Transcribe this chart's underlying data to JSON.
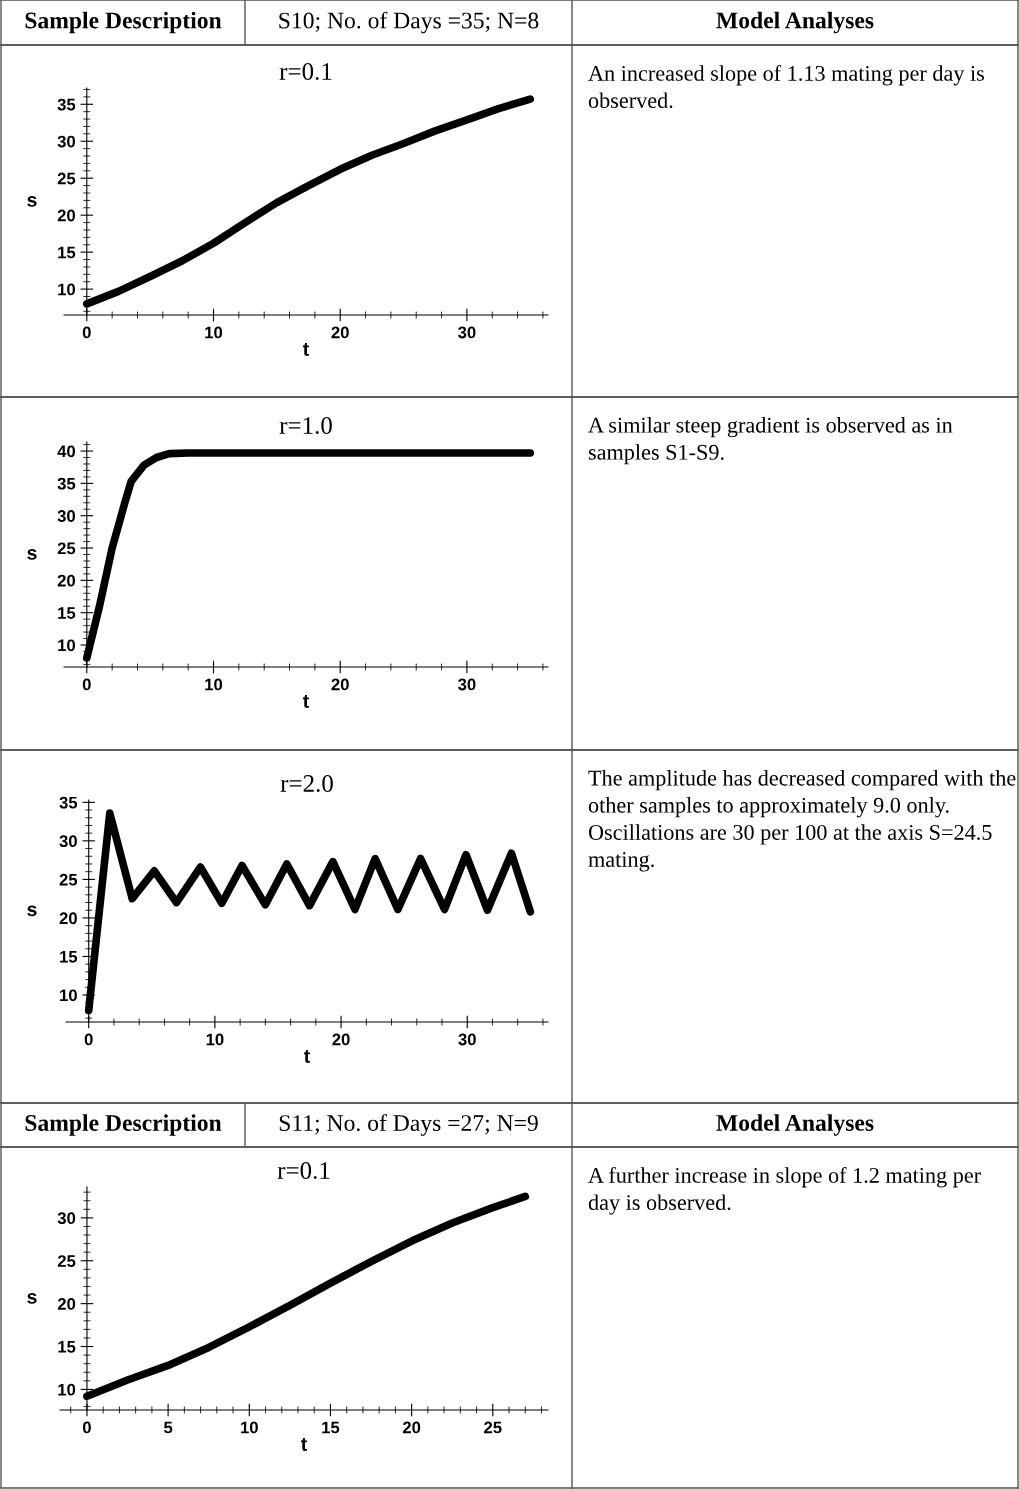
{
  "chart_data": [
    {
      "type": "other",
      "annotations": [
        "Sample Description",
        "S10; No. of Days =35; N=8",
        "Model Analyses"
      ]
    },
    {
      "type": "line",
      "title": "r=0.1",
      "xlabel": "t",
      "ylabel": "s",
      "color": "#000000",
      "x": [
        0,
        2.5,
        5,
        7.5,
        10,
        12.5,
        15,
        17.5,
        20,
        22.5,
        25,
        27.5,
        30,
        32.5,
        35
      ],
      "values": [
        8,
        9.7,
        11.7,
        13.8,
        16.2,
        19.0,
        21.7,
        24.0,
        26.2,
        28.1,
        29.7,
        31.4,
        32.9,
        34.4,
        35.7
      ],
      "xlim": [
        -1.8,
        36.4
      ],
      "ylim": [
        6.5,
        37.2
      ],
      "xticks": [
        0,
        10,
        20,
        30
      ],
      "yticks": [
        10,
        15,
        20,
        25,
        30,
        35
      ],
      "annotations": [
        "An increased slope of 1.13 mating per day is observed."
      ]
    },
    {
      "type": "line",
      "title": "r=1.0",
      "xlabel": "t",
      "ylabel": "s",
      "color": "#000000",
      "x": [
        0,
        1,
        2,
        3,
        3.5,
        4.5,
        5.5,
        6.5,
        8,
        35
      ],
      "values": [
        8,
        16,
        25,
        32,
        35.3,
        37.8,
        39,
        39.6,
        39.7,
        39.7
      ],
      "xlim": [
        -1.8,
        36.4
      ],
      "ylim": [
        6.6,
        41.4
      ],
      "xticks": [
        0,
        10,
        20,
        30
      ],
      "yticks": [
        10,
        15,
        20,
        25,
        30,
        35,
        40
      ],
      "annotations": [
        "A similar steep gradient is observed as in samples S1-S9."
      ]
    },
    {
      "type": "line",
      "title": "r=2.0",
      "xlabel": "t",
      "ylabel": "s",
      "color": "#000000",
      "x": [
        0,
        1.67,
        3.45,
        5.2,
        6.95,
        8.85,
        10.55,
        12.15,
        14.0,
        15.7,
        17.5,
        19.35,
        21.1,
        22.7,
        24.5,
        26.3,
        28.2,
        29.9,
        31.6,
        33.5,
        35
      ],
      "values": [
        8,
        33.6,
        22.5,
        26.1,
        22.0,
        26.6,
        21.9,
        26.8,
        21.7,
        27.0,
        21.6,
        27.3,
        21.1,
        27.7,
        21.1,
        27.7,
        21.1,
        28.2,
        21.0,
        28.4,
        20.8
      ],
      "xlim": [
        -1.8,
        36.4
      ],
      "ylim": [
        6.5,
        35.3
      ],
      "xticks": [
        0,
        10,
        20,
        30
      ],
      "yticks": [
        10,
        15,
        20,
        25,
        30,
        35
      ],
      "annotations": [
        "The amplitude has decreased compared with the other samples to approximately 9.0 only. Oscillations are 30 per 100 at the axis S=24.5 mating."
      ]
    },
    {
      "type": "other",
      "annotations": [
        "Sample Description",
        "S11; No. of Days =27; N=9",
        "Model Analyses"
      ]
    },
    {
      "type": "line",
      "title": "r=0.1",
      "xlabel": "t",
      "ylabel": "s",
      "color": "#000000",
      "x": [
        0,
        2.5,
        5,
        7.5,
        10,
        12.5,
        15,
        17.5,
        20,
        22.5,
        25,
        27
      ],
      "values": [
        9.2,
        11.1,
        12.8,
        14.9,
        17.3,
        19.8,
        22.4,
        24.9,
        27.3,
        29.4,
        31.2,
        32.5
      ],
      "xlim": [
        -1.66,
        28.4
      ],
      "ylim": [
        7.6,
        33.6
      ],
      "xticks": [
        0,
        5,
        10,
        15,
        20,
        25
      ],
      "yticks": [
        10,
        15,
        20,
        25,
        30
      ],
      "annotations": [
        "A further increase in slope of 1.2 mating per day is observed."
      ]
    }
  ]
}
